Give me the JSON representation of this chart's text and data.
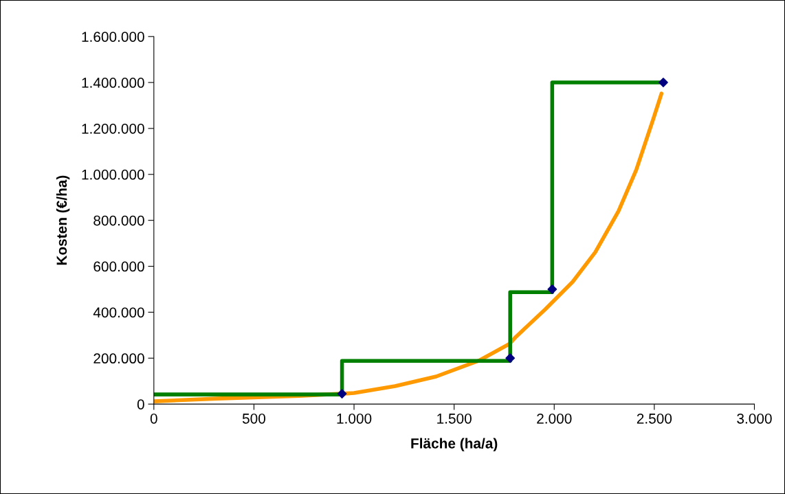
{
  "chart_data": {
    "type": "line",
    "xlabel": "Fläche (ha/a)",
    "ylabel": "Kosten (€/ha)",
    "xlim": [
      0,
      3000
    ],
    "ylim": [
      0,
      1600000
    ],
    "xticks": [
      0,
      500,
      {
        "value": 1000,
        "label": "1.000"
      },
      {
        "value": 1500,
        "label": "1.500"
      },
      {
        "value": 2000,
        "label": "2.000"
      },
      {
        "value": 2500,
        "label": "2.500"
      },
      {
        "value": 3000,
        "label": "3.000"
      }
    ],
    "yticks": [
      0,
      {
        "value": 200000,
        "label": "200.000"
      },
      {
        "value": 400000,
        "label": "400.000"
      },
      {
        "value": 600000,
        "label": "600.000"
      },
      {
        "value": 800000,
        "label": "800.000"
      },
      {
        "value": 1000000,
        "label": "1.000.000"
      },
      {
        "value": 1200000,
        "label": "1.200.000"
      },
      {
        "value": 1400000,
        "label": "1.400.000"
      },
      {
        "value": 1600000,
        "label": "1.600.000"
      }
    ],
    "grid": false,
    "legend": false,
    "series": [
      {
        "color": "#ff9900",
        "marker": "none",
        "x": [
          0,
          317,
          727,
          1000,
          1205,
          1410,
          1628,
          1778,
          1809,
          1956,
          2092,
          2205,
          2321,
          2410,
          2495,
          2536
        ],
        "values": [
          12000,
          24000,
          36000,
          48000,
          78000,
          120000,
          191000,
          263000,
          293000,
          413000,
          532000,
          661000,
          840000,
          1020000,
          1241000,
          1352000
        ]
      },
      {
        "color": "#008000",
        "marker": "none",
        "x": [
          0,
          940,
          940,
          1780,
          1780,
          1990,
          1990,
          2545
        ],
        "values": [
          42000,
          42000,
          188000,
          188000,
          487000,
          487000,
          1400000,
          1400000
        ]
      },
      {
        "type": "scatter",
        "color": "#000080",
        "marker": "diamond",
        "x": [
          940,
          1780,
          1990,
          2545
        ],
        "values": [
          45000,
          200000,
          500000,
          1400000
        ]
      }
    ]
  }
}
